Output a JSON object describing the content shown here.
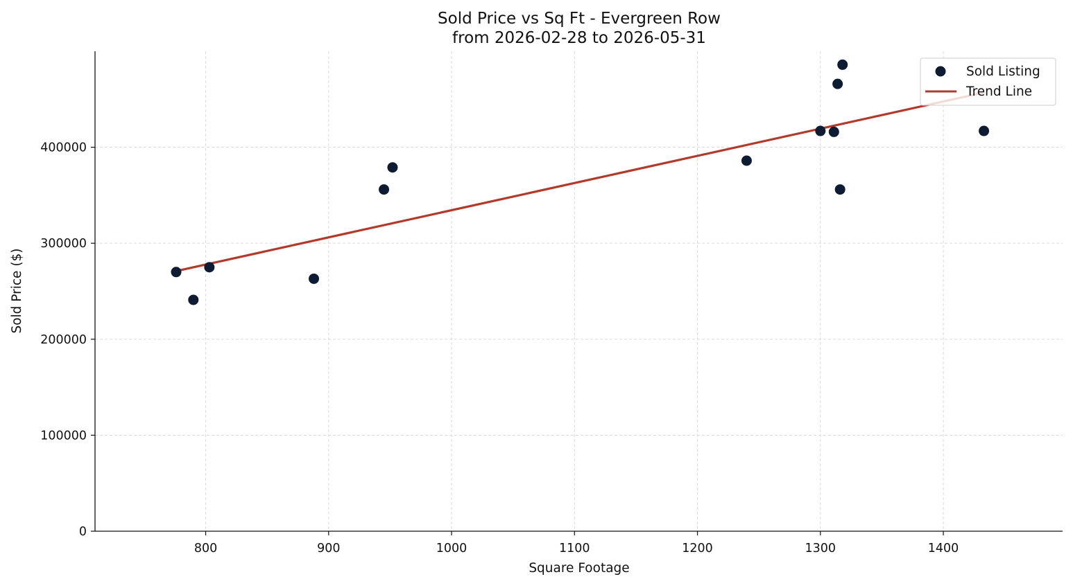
{
  "chart_data": {
    "type": "scatter",
    "title": "Sold Price vs Sq Ft - Evergreen Row",
    "subtitle": "from 2026-02-28 to 2026-05-31",
    "xlabel": "Square Footage",
    "ylabel": "Sold Price ($)",
    "xlim": [
      710,
      1497
    ],
    "ylim": [
      0,
      500000
    ],
    "xticks": [
      800,
      900,
      1000,
      1100,
      1200,
      1300,
      1400
    ],
    "yticks": [
      0,
      100000,
      200000,
      300000,
      400000
    ],
    "grid": true,
    "legend_position": "top-right",
    "series": [
      {
        "name": "Sold Listing",
        "kind": "scatter",
        "color": "#0d1b33",
        "points": [
          {
            "x": 776,
            "y": 270000
          },
          {
            "x": 790,
            "y": 241000
          },
          {
            "x": 803,
            "y": 275000
          },
          {
            "x": 888,
            "y": 263000
          },
          {
            "x": 945,
            "y": 356000
          },
          {
            "x": 952,
            "y": 379000
          },
          {
            "x": 1240,
            "y": 386000
          },
          {
            "x": 1300,
            "y": 417000
          },
          {
            "x": 1311,
            "y": 416000
          },
          {
            "x": 1314,
            "y": 466000
          },
          {
            "x": 1316,
            "y": 356000
          },
          {
            "x": 1318,
            "y": 486000
          },
          {
            "x": 1433,
            "y": 417000
          }
        ]
      },
      {
        "name": "Trend Line",
        "kind": "line",
        "color": "#b33a2a",
        "points": [
          {
            "x": 776,
            "y": 271000
          },
          {
            "x": 1433,
            "y": 457000
          }
        ]
      }
    ]
  }
}
